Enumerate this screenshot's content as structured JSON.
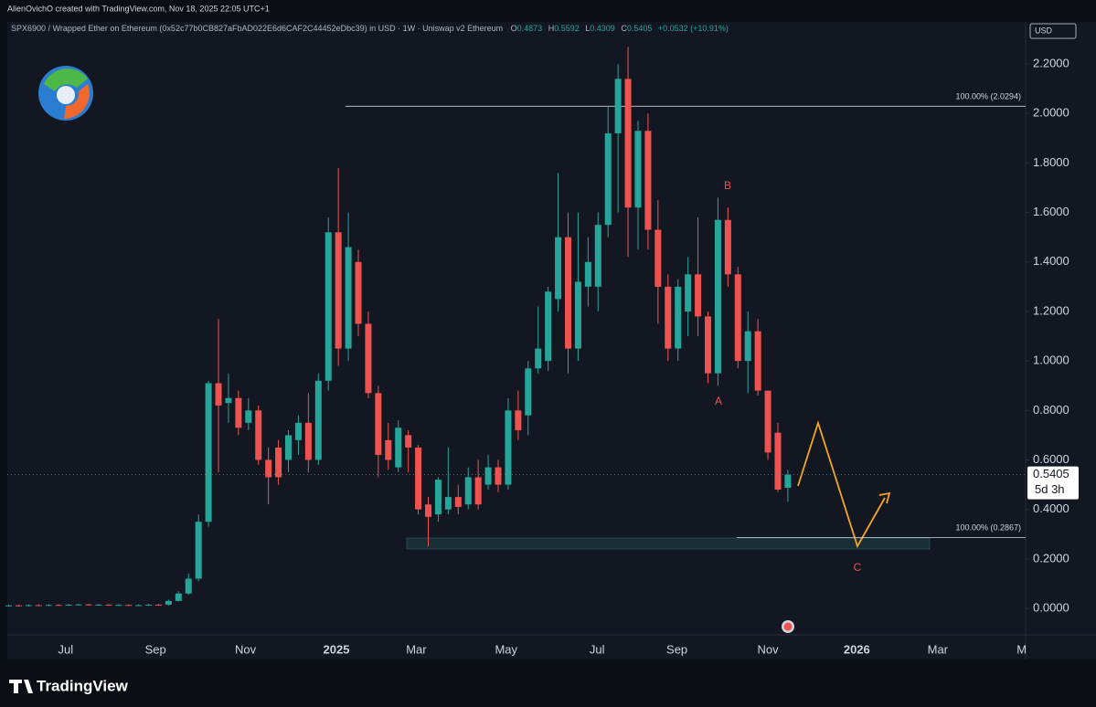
{
  "header": {
    "credit": "AlienOvichO created with TradingView.com, Nov 18, 2025 22:05 UTC+1",
    "symbol": "SPX6900 / Wrapped Ether on Ethereum (0x52c77b0CB827aFbAD022E6d6CAF2C44452eDbc39) in USD · 1W · Uniswap v2 Ethereum",
    "ohlc_labels": [
      "O",
      "H",
      "L",
      "C"
    ],
    "change": "+0.0532 (+10.91%)"
  },
  "chart_data": {
    "type": "candlestick",
    "currency": "USD",
    "up_color": "#26a69a",
    "down_color": "#ef5350",
    "open": [
      0.01,
      0.012,
      0.011,
      0.013,
      0.012,
      0.014,
      0.013,
      0.015,
      0.016,
      0.014,
      0.015,
      0.013,
      0.014,
      0.012,
      0.013,
      0.015,
      0.015,
      0.03,
      0.06,
      0.12,
      0.35,
      0.91,
      0.83,
      0.85,
      0.75,
      0.8,
      0.6,
      0.65,
      0.6,
      0.68,
      0.75,
      0.6,
      0.92,
      1.52,
      1.05,
      1.4,
      1.15,
      0.87,
      0.68,
      0.57,
      0.7,
      0.65,
      0.42,
      0.38,
      0.4,
      0.45,
      0.42,
      0.53,
      0.5,
      0.57,
      0.5,
      0.8,
      0.78,
      0.97,
      1.0,
      1.25,
      1.5,
      1.05,
      1.3,
      1.3,
      1.55,
      1.92,
      2.14,
      1.62,
      1.93,
      1.53,
      1.3,
      1.05,
      1.2,
      1.35,
      1.18,
      0.95,
      1.57,
      1.35,
      1.0,
      1.12,
      0.88,
      0.71,
      0.4873
    ],
    "high": [
      0.015,
      0.015,
      0.016,
      0.016,
      0.017,
      0.017,
      0.018,
      0.019,
      0.018,
      0.018,
      0.017,
      0.017,
      0.016,
      0.016,
      0.018,
      0.018,
      0.035,
      0.07,
      0.14,
      0.38,
      0.92,
      1.17,
      0.95,
      0.88,
      0.85,
      0.82,
      0.65,
      0.68,
      0.72,
      0.78,
      0.87,
      0.95,
      1.58,
      1.78,
      1.6,
      1.45,
      1.2,
      0.9,
      0.75,
      0.76,
      0.72,
      0.66,
      0.45,
      0.53,
      0.65,
      0.5,
      0.57,
      0.6,
      0.62,
      0.6,
      0.85,
      0.88,
      1.0,
      1.22,
      1.3,
      1.76,
      1.6,
      1.6,
      1.5,
      1.6,
      2.03,
      2.2,
      2.27,
      1.97,
      2.0,
      1.65,
      1.35,
      1.33,
      1.42,
      1.58,
      1.2,
      1.66,
      1.62,
      1.38,
      1.2,
      1.17,
      0.88,
      0.75,
      0.5592
    ],
    "low": [
      0.007,
      0.008,
      0.008,
      0.009,
      0.009,
      0.01,
      0.01,
      0.012,
      0.011,
      0.011,
      0.01,
      0.011,
      0.009,
      0.01,
      0.01,
      0.011,
      0.012,
      0.028,
      0.055,
      0.11,
      0.33,
      0.55,
      0.75,
      0.7,
      0.72,
      0.58,
      0.42,
      0.5,
      0.55,
      0.62,
      0.55,
      0.58,
      0.88,
      0.98,
      1.0,
      1.1,
      0.85,
      0.53,
      0.56,
      0.55,
      0.55,
      0.38,
      0.25,
      0.35,
      0.38,
      0.38,
      0.4,
      0.4,
      0.48,
      0.47,
      0.48,
      0.68,
      0.7,
      0.95,
      0.96,
      1.2,
      0.95,
      1.0,
      1.22,
      1.2,
      1.5,
      1.6,
      1.42,
      1.45,
      1.45,
      1.15,
      1.0,
      1.0,
      1.1,
      1.1,
      0.91,
      0.9,
      1.3,
      0.97,
      0.87,
      0.86,
      0.6,
      0.47,
      0.4309
    ],
    "close": [
      0.012,
      0.011,
      0.013,
      0.012,
      0.014,
      0.013,
      0.015,
      0.016,
      0.014,
      0.015,
      0.013,
      0.014,
      0.012,
      0.013,
      0.015,
      0.014,
      0.03,
      0.06,
      0.12,
      0.35,
      0.91,
      0.82,
      0.85,
      0.73,
      0.8,
      0.6,
      0.53,
      0.53,
      0.7,
      0.75,
      0.6,
      0.92,
      1.52,
      1.05,
      1.46,
      1.15,
      0.87,
      0.62,
      0.6,
      0.73,
      0.65,
      0.4,
      0.37,
      0.52,
      0.45,
      0.41,
      0.53,
      0.42,
      0.57,
      0.5,
      0.8,
      0.72,
      0.97,
      1.05,
      1.28,
      1.5,
      1.05,
      1.32,
      1.4,
      1.55,
      1.92,
      2.14,
      1.62,
      1.93,
      1.53,
      1.3,
      1.05,
      1.3,
      1.35,
      1.18,
      0.95,
      1.57,
      1.35,
      1.0,
      1.12,
      0.88,
      0.63,
      0.48,
      0.5405
    ],
    "xlim": [
      -0.14,
      101.8
    ],
    "xticks": [
      {
        "value": 5.7,
        "label": "Jul"
      },
      {
        "value": 14.7,
        "label": "Sep"
      },
      {
        "value": 23.7,
        "label": "Nov"
      },
      2025,
      {
        "value": 40.8,
        "label": "Mar"
      },
      {
        "value": 49.8,
        "label": "May"
      },
      {
        "value": 58.9,
        "label": "Jul"
      },
      {
        "value": 66.9,
        "label": "Sep"
      },
      {
        "value": 76.0,
        "label": "Nov"
      },
      2026,
      {
        "value": 93.0,
        "label": "Mar"
      },
      {
        "value": 101.4,
        "label": "M"
      }
    ],
    "xtick_positions": [
      32.8,
      84.9
    ],
    "ylim": [
      -0.107,
      2.348
    ],
    "yticks": [
      {
        "value": 0,
        "label": "0.0000"
      },
      {
        "value": 0.2,
        "label": "0.2000"
      },
      {
        "value": 0.4,
        "label": "0.4000"
      },
      {
        "value": 0.6,
        "label": "0.6000"
      },
      {
        "value": 0.8,
        "label": "0.8000"
      },
      {
        "value": 1,
        "label": "1.0000"
      },
      {
        "value": 1.2,
        "label": "1.2000"
      },
      {
        "value": 1.4,
        "label": "1.4000"
      },
      {
        "value": 1.6,
        "label": "1.6000"
      },
      {
        "value": 1.8,
        "label": "1.8000"
      },
      {
        "value": 2,
        "label": "2.0000"
      },
      {
        "value": 2.2,
        "label": "2.2000"
      }
    ],
    "levels": [
      {
        "label": "100.00% (2.0294)",
        "value": 2.0294
      },
      {
        "label": "100.00% (0.2867)",
        "value": 0.2867
      }
    ],
    "wave_labels": [
      "A",
      "B",
      "C"
    ],
    "countdown": "5d 3h"
  },
  "footer": {
    "brand": "TradingView"
  }
}
